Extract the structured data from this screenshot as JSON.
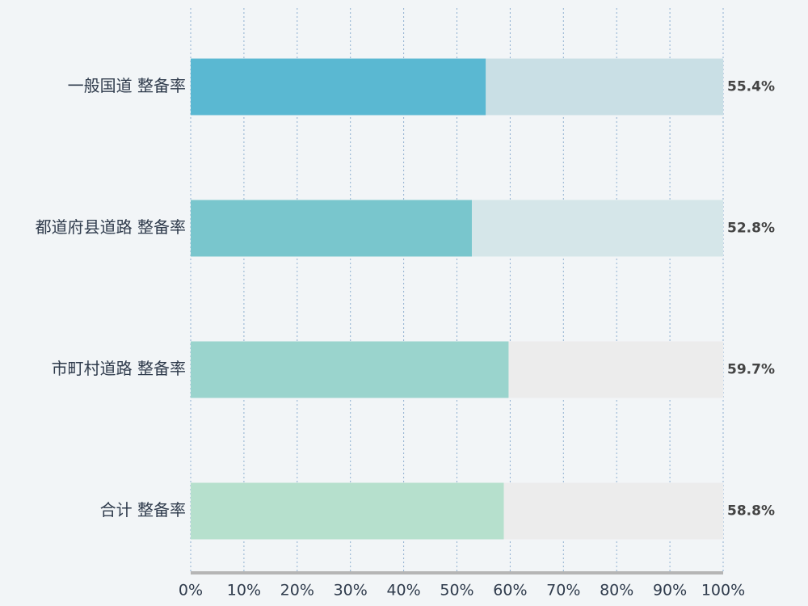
{
  "chart_data": {
    "type": "bar",
    "orientation": "horizontal",
    "categories": [
      "一般国道 整备率",
      "都道府县道路 整备率",
      "市町村道路 整备率",
      "合计 整备率"
    ],
    "values": [
      55.4,
      52.8,
      59.7,
      58.8
    ],
    "value_labels": [
      "55.4%",
      "52.8%",
      "59.7%",
      "58.8%"
    ],
    "colors": [
      "#5ab8d2",
      "#79c6cd",
      "#9ad4cd",
      "#b6e0cd"
    ],
    "track_colors": [
      "#c9dfe5",
      "#d5e6e9",
      "#ececec",
      "#ececec"
    ],
    "xlim": [
      0,
      100
    ],
    "xticks": [
      {
        "value": 0,
        "label": "0%"
      },
      {
        "value": 10,
        "label": "10%"
      },
      {
        "value": 20,
        "label": "20%"
      },
      {
        "value": 30,
        "label": "30%"
      },
      {
        "value": 40,
        "label": "40%"
      },
      {
        "value": 50,
        "label": "50%"
      },
      {
        "value": 60,
        "label": "60%"
      },
      {
        "value": 70,
        "label": "70%"
      },
      {
        "value": 80,
        "label": "80%"
      },
      {
        "value": 90,
        "label": "90%"
      },
      {
        "value": 100,
        "label": "100%"
      }
    ],
    "grid": true
  }
}
